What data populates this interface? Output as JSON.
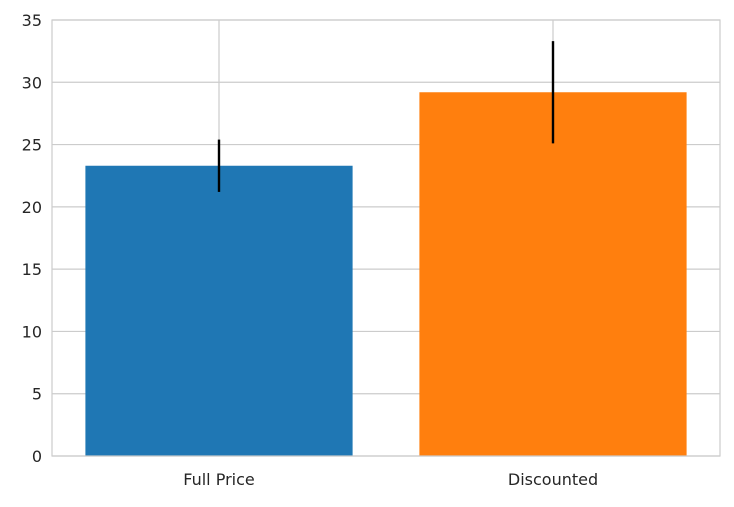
{
  "chart_data": {
    "type": "bar",
    "title": "",
    "xlabel": "",
    "ylabel": "",
    "categories": [
      "Full Price",
      "Discounted"
    ],
    "values": [
      23.3,
      29.2
    ],
    "errors": [
      2.1,
      4.1
    ],
    "colors": [
      "#1f77b4",
      "#ff7f0e"
    ],
    "error_color": "#000000",
    "ylim": [
      0,
      35
    ],
    "yticks": [
      0,
      5,
      10,
      15,
      20,
      25,
      30,
      35
    ],
    "grid": true,
    "legend": "none"
  }
}
